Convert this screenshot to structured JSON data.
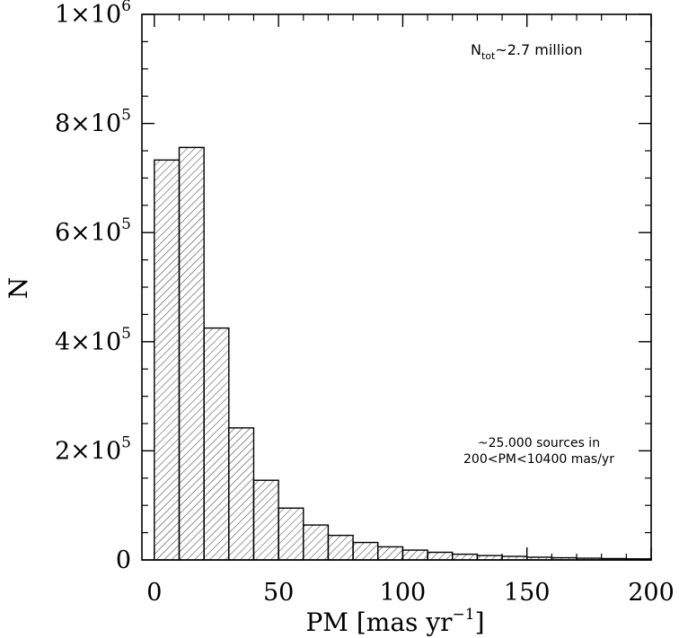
{
  "chart_data": {
    "type": "bar",
    "xlabel": "PM [mas yr",
    "xlabel_sup": "−1",
    "xlabel_end": "]",
    "ylabel": "N",
    "xlim": [
      -5,
      200
    ],
    "ylim": [
      0,
      1000000
    ],
    "x_ticks": [
      {
        "value": 0,
        "label": "0"
      },
      {
        "value": 50,
        "label": "50"
      },
      {
        "value": 100,
        "label": "100"
      },
      {
        "value": 150,
        "label": "150"
      },
      {
        "value": 200,
        "label": "200"
      }
    ],
    "y_ticks": [
      {
        "value": 0,
        "mant": "0",
        "exp": ""
      },
      {
        "value": 200000,
        "mant": "2×10",
        "exp": "5"
      },
      {
        "value": 400000,
        "mant": "4×10",
        "exp": "5"
      },
      {
        "value": 600000,
        "mant": "6×10",
        "exp": "5"
      },
      {
        "value": 800000,
        "mant": "8×10",
        "exp": "5"
      },
      {
        "value": 1000000,
        "mant": "1×10",
        "exp": "6"
      }
    ],
    "bin_width": 10,
    "bins": [
      {
        "x0": 0,
        "x1": 10,
        "value": 733000
      },
      {
        "x0": 10,
        "x1": 20,
        "value": 756000
      },
      {
        "x0": 20,
        "x1": 30,
        "value": 425000
      },
      {
        "x0": 30,
        "x1": 40,
        "value": 242000
      },
      {
        "x0": 40,
        "x1": 50,
        "value": 146000
      },
      {
        "x0": 50,
        "x1": 60,
        "value": 95000
      },
      {
        "x0": 60,
        "x1": 70,
        "value": 64000
      },
      {
        "x0": 70,
        "x1": 80,
        "value": 45000
      },
      {
        "x0": 80,
        "x1": 90,
        "value": 32000
      },
      {
        "x0": 90,
        "x1": 100,
        "value": 24000
      },
      {
        "x0": 100,
        "x1": 110,
        "value": 18000
      },
      {
        "x0": 110,
        "x1": 120,
        "value": 14000
      },
      {
        "x0": 120,
        "x1": 130,
        "value": 10500
      },
      {
        "x0": 130,
        "x1": 140,
        "value": 8000
      },
      {
        "x0": 140,
        "x1": 150,
        "value": 6500
      },
      {
        "x0": 150,
        "x1": 160,
        "value": 5000
      },
      {
        "x0": 160,
        "x1": 170,
        "value": 4000
      },
      {
        "x0": 170,
        "x1": 180,
        "value": 3200
      },
      {
        "x0": 180,
        "x1": 190,
        "value": 2500
      },
      {
        "x0": 190,
        "x1": 200,
        "value": 2000
      }
    ],
    "annotations": {
      "total_prefix": "N",
      "total_sub": "tot",
      "total_suffix": "~2.7 million",
      "note_line1": "~25.000 sources in",
      "note_line2": "200<PM<10400 mas/yr"
    },
    "grid": false,
    "fill": "diagonal-hatch",
    "colors": {
      "line": "#000000",
      "background": "#ffffff"
    }
  }
}
